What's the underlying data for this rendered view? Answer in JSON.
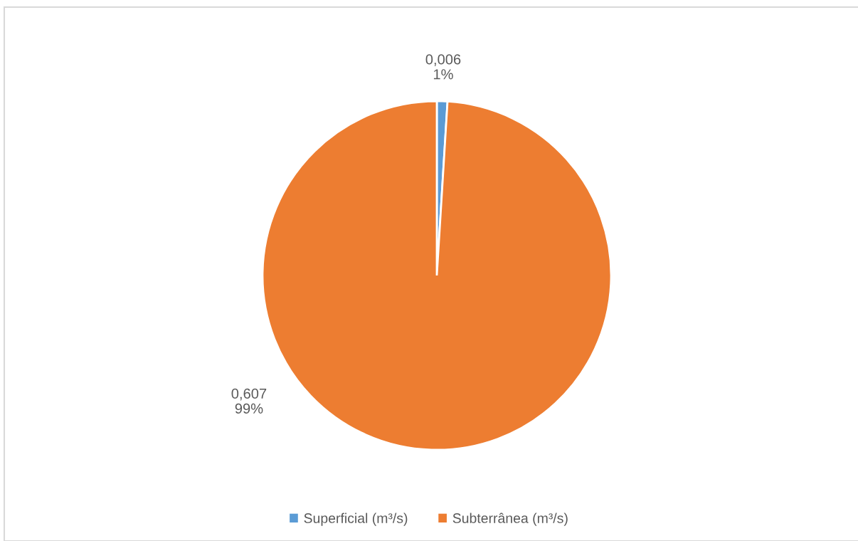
{
  "chart_data": {
    "type": "pie",
    "categories": [
      "Superficial (m³/s)",
      "Subterrânea (m³/s)"
    ],
    "values": [
      0.006,
      0.607
    ],
    "colors": [
      "#5b9bd5",
      "#ed7d31"
    ],
    "value_labels": [
      "0,006\n1%",
      "0,607\n99%"
    ],
    "legend": "bottom"
  }
}
